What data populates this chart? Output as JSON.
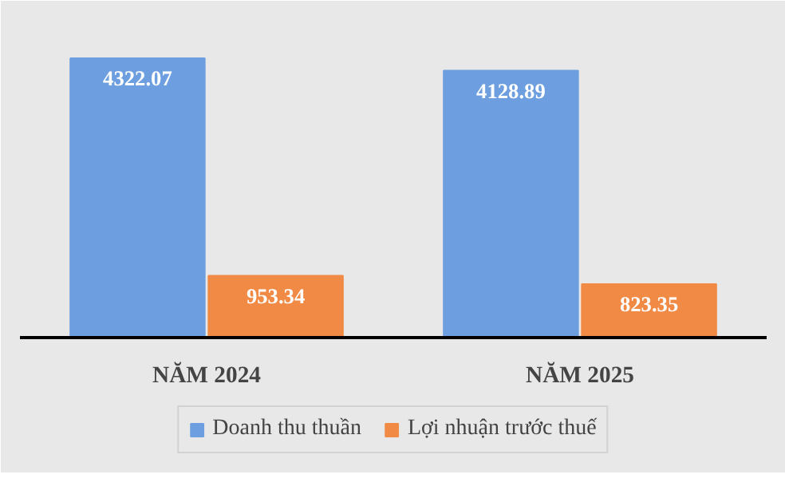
{
  "chart_data": {
    "type": "bar",
    "categories": [
      "NĂM 2024",
      "NĂM 2025"
    ],
    "series": [
      {
        "name": "Doanh thu thuần",
        "color": "#6d9fe0",
        "values": [
          4322.07,
          4128.89
        ]
      },
      {
        "name": "Lợi nhuận trước thuế",
        "color": "#f08a45",
        "values": [
          953.34,
          823.35
        ]
      }
    ],
    "data_labels": true,
    "legend": "bottom"
  }
}
